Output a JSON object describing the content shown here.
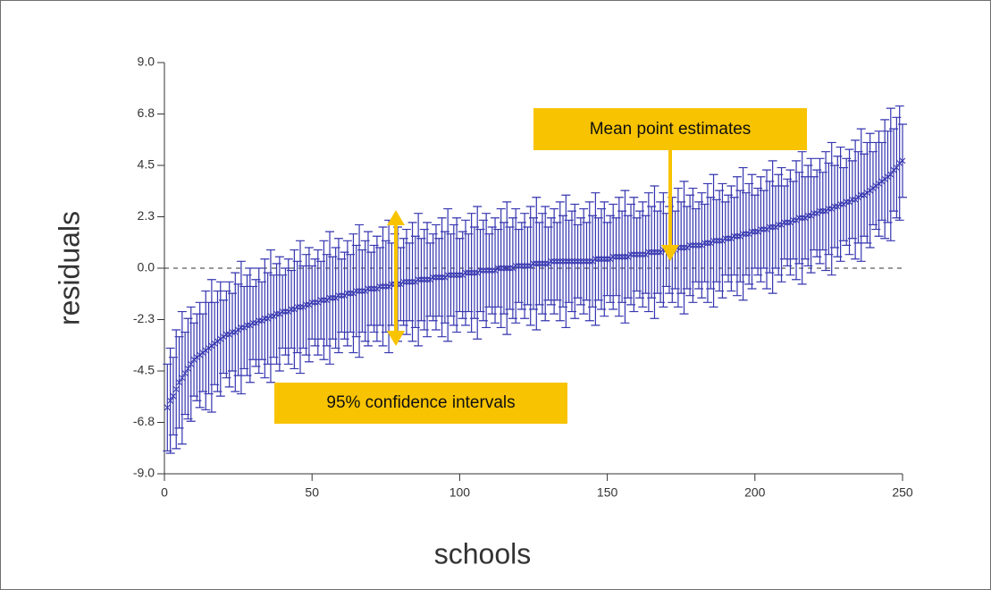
{
  "chart_data": {
    "type": "errorbar",
    "x_label": "schools",
    "y_label": "residuals",
    "annotations": [
      "Mean point estimates",
      "95% confidence intervals"
    ],
    "xlim": [
      0,
      250
    ],
    "xticks": [
      0,
      50,
      100,
      150,
      200,
      250
    ],
    "ylim": [
      -9,
      9
    ],
    "yticks": [
      {
        "value": -9,
        "label": "-9.0"
      },
      {
        "value": -6.75,
        "label": "-6.8"
      },
      {
        "value": -4.5,
        "label": "-4.5"
      },
      {
        "value": -2.25,
        "label": "-2.3"
      },
      {
        "value": 0,
        "label": "0.0"
      },
      {
        "value": 2.25,
        "label": "2.3"
      },
      {
        "value": 4.5,
        "label": "4.5"
      },
      {
        "value": 6.75,
        "label": "6.8"
      },
      {
        "value": 9,
        "label": "9.0"
      }
    ],
    "reference_line": 0,
    "series": [
      {
        "color": "#3535b0",
        "x": [
          1,
          2,
          3,
          4,
          5,
          6,
          7,
          8,
          9,
          10,
          11,
          12,
          13,
          14,
          15,
          16,
          17,
          18,
          19,
          20,
          21,
          22,
          23,
          24,
          25,
          26,
          27,
          28,
          29,
          30,
          31,
          32,
          33,
          34,
          35,
          36,
          37,
          38,
          39,
          40,
          41,
          42,
          43,
          44,
          45,
          46,
          47,
          48,
          49,
          50,
          51,
          52,
          53,
          54,
          55,
          56,
          57,
          58,
          59,
          60,
          61,
          62,
          63,
          64,
          65,
          66,
          67,
          68,
          69,
          70,
          71,
          72,
          73,
          74,
          75,
          76,
          77,
          78,
          79,
          80,
          81,
          82,
          83,
          84,
          85,
          86,
          87,
          88,
          89,
          90,
          91,
          92,
          93,
          94,
          95,
          96,
          97,
          98,
          99,
          100,
          101,
          102,
          103,
          104,
          105,
          106,
          107,
          108,
          109,
          110,
          111,
          112,
          113,
          114,
          115,
          116,
          117,
          118,
          119,
          120,
          121,
          122,
          123,
          124,
          125,
          126,
          127,
          128,
          129,
          130,
          131,
          132,
          133,
          134,
          135,
          136,
          137,
          138,
          139,
          140,
          141,
          142,
          143,
          144,
          145,
          146,
          147,
          148,
          149,
          150,
          151,
          152,
          153,
          154,
          155,
          156,
          157,
          158,
          159,
          160,
          161,
          162,
          163,
          164,
          165,
          166,
          167,
          168,
          169,
          170,
          171,
          172,
          173,
          174,
          175,
          176,
          177,
          178,
          179,
          180,
          181,
          182,
          183,
          184,
          185,
          186,
          187,
          188,
          189,
          190,
          191,
          192,
          193,
          194,
          195,
          196,
          197,
          198,
          199,
          200,
          201,
          202,
          203,
          204,
          205,
          206,
          207,
          208,
          209,
          210,
          211,
          212,
          213,
          214,
          215,
          216,
          217,
          218,
          219,
          220,
          221,
          222,
          223,
          224,
          225,
          226,
          227,
          228,
          229,
          230,
          231,
          232,
          233,
          234,
          235,
          236,
          237,
          238,
          239,
          240,
          241,
          242,
          243,
          244,
          245,
          246,
          247,
          248,
          249,
          250
        ],
        "values": [
          -6.1,
          -5.8,
          -5.6,
          -5.3,
          -5.0,
          -4.8,
          -4.6,
          -4.4,
          -4.2,
          -4.0,
          -3.9,
          -3.8,
          -3.7,
          -3.6,
          -3.5,
          -3.4,
          -3.3,
          -3.2,
          -3.1,
          -3.0,
          -2.9,
          -2.9,
          -2.8,
          -2.8,
          -2.7,
          -2.6,
          -2.6,
          -2.5,
          -2.5,
          -2.4,
          -2.4,
          -2.3,
          -2.3,
          -2.2,
          -2.2,
          -2.1,
          -2.1,
          -2.0,
          -2.0,
          -1.9,
          -1.9,
          -1.9,
          -1.8,
          -1.8,
          -1.7,
          -1.7,
          -1.7,
          -1.6,
          -1.6,
          -1.5,
          -1.5,
          -1.5,
          -1.4,
          -1.4,
          -1.4,
          -1.3,
          -1.3,
          -1.3,
          -1.2,
          -1.2,
          -1.2,
          -1.1,
          -1.1,
          -1.1,
          -1.0,
          -1.0,
          -1.0,
          -1.0,
          -0.9,
          -0.9,
          -0.9,
          -0.9,
          -0.8,
          -0.8,
          -0.8,
          -0.8,
          -0.7,
          -0.7,
          -0.7,
          -0.7,
          -0.6,
          -0.6,
          -0.6,
          -0.6,
          -0.6,
          -0.5,
          -0.5,
          -0.5,
          -0.5,
          -0.5,
          -0.4,
          -0.4,
          -0.4,
          -0.4,
          -0.4,
          -0.3,
          -0.3,
          -0.3,
          -0.3,
          -0.3,
          -0.3,
          -0.2,
          -0.2,
          -0.2,
          -0.2,
          -0.2,
          -0.1,
          -0.1,
          -0.1,
          -0.1,
          -0.1,
          -0.1,
          0.0,
          0.0,
          0.0,
          0.0,
          0.0,
          0.0,
          0.1,
          0.1,
          0.1,
          0.1,
          0.1,
          0.1,
          0.2,
          0.2,
          0.2,
          0.2,
          0.2,
          0.2,
          0.3,
          0.3,
          0.3,
          0.3,
          0.3,
          0.3,
          0.3,
          0.3,
          0.3,
          0.3,
          0.3,
          0.3,
          0.3,
          0.3,
          0.3,
          0.4,
          0.4,
          0.4,
          0.4,
          0.4,
          0.4,
          0.5,
          0.5,
          0.5,
          0.5,
          0.5,
          0.5,
          0.6,
          0.6,
          0.6,
          0.6,
          0.6,
          0.6,
          0.7,
          0.7,
          0.7,
          0.7,
          0.7,
          0.8,
          0.8,
          0.8,
          0.8,
          0.8,
          0.9,
          0.9,
          0.9,
          0.9,
          1.0,
          1.0,
          1.0,
          1.0,
          1.0,
          1.1,
          1.1,
          1.1,
          1.2,
          1.2,
          1.2,
          1.2,
          1.3,
          1.3,
          1.3,
          1.4,
          1.4,
          1.4,
          1.5,
          1.5,
          1.5,
          1.6,
          1.6,
          1.6,
          1.7,
          1.7,
          1.7,
          1.8,
          1.8,
          1.8,
          1.9,
          1.9,
          2.0,
          2.0,
          2.0,
          2.1,
          2.1,
          2.2,
          2.2,
          2.2,
          2.3,
          2.3,
          2.4,
          2.4,
          2.5,
          2.5,
          2.5,
          2.6,
          2.6,
          2.7,
          2.7,
          2.8,
          2.8,
          2.9,
          2.9,
          3.0,
          3.0,
          3.1,
          3.2,
          3.2,
          3.3,
          3.4,
          3.5,
          3.6,
          3.7,
          3.8,
          3.9,
          4.0,
          4.1,
          4.3,
          4.4,
          4.6,
          4.7
        ],
        "errors": [
          1.9,
          2.3,
          1.7,
          2.6,
          2.0,
          2.9,
          1.8,
          2.2,
          2.5,
          1.6,
          1.9,
          2.3,
          1.7,
          2.6,
          2.0,
          2.9,
          1.8,
          2.2,
          2.5,
          1.6,
          1.9,
          2.3,
          1.7,
          2.6,
          2.0,
          2.9,
          1.8,
          2.2,
          2.5,
          1.6,
          1.9,
          2.3,
          1.7,
          2.6,
          2.0,
          2.9,
          1.8,
          2.2,
          2.5,
          1.6,
          1.9,
          2.3,
          1.7,
          2.6,
          2.0,
          2.9,
          1.8,
          2.2,
          2.5,
          1.6,
          1.9,
          2.3,
          1.7,
          2.6,
          2.0,
          2.9,
          1.8,
          2.2,
          2.5,
          1.6,
          1.9,
          2.3,
          1.7,
          2.6,
          2.0,
          2.9,
          1.8,
          2.2,
          2.5,
          1.6,
          1.9,
          2.3,
          1.7,
          2.6,
          2.0,
          2.9,
          1.8,
          2.2,
          2.5,
          1.6,
          1.9,
          2.3,
          1.7,
          2.6,
          2.0,
          2.9,
          1.8,
          2.2,
          2.5,
          1.6,
          1.9,
          2.3,
          1.7,
          2.6,
          2.0,
          2.9,
          1.8,
          2.2,
          2.5,
          1.6,
          1.9,
          2.3,
          1.7,
          2.6,
          2.0,
          2.9,
          1.8,
          2.2,
          2.5,
          1.6,
          1.9,
          2.3,
          1.7,
          2.6,
          2.0,
          2.9,
          1.8,
          2.2,
          2.5,
          1.6,
          1.9,
          2.3,
          1.7,
          2.6,
          2.0,
          2.9,
          1.8,
          2.2,
          2.5,
          1.6,
          1.9,
          2.3,
          1.7,
          2.6,
          2.0,
          2.9,
          1.8,
          2.2,
          2.5,
          1.6,
          1.9,
          2.3,
          1.7,
          2.6,
          2.0,
          2.9,
          1.8,
          2.2,
          2.5,
          1.6,
          1.9,
          2.3,
          1.7,
          2.6,
          2.0,
          2.9,
          1.8,
          2.2,
          2.5,
          1.6,
          1.9,
          2.3,
          1.7,
          2.6,
          2.0,
          2.9,
          1.8,
          2.2,
          2.5,
          1.6,
          1.9,
          2.3,
          1.7,
          2.6,
          2.0,
          2.9,
          1.8,
          2.2,
          2.5,
          1.6,
          1.9,
          2.3,
          1.7,
          2.6,
          2.0,
          2.9,
          1.8,
          2.2,
          2.5,
          1.6,
          1.9,
          2.3,
          1.7,
          2.6,
          2.0,
          2.9,
          1.8,
          2.2,
          2.5,
          1.6,
          1.9,
          2.3,
          1.7,
          2.6,
          2.0,
          2.9,
          1.8,
          2.2,
          2.5,
          1.6,
          1.9,
          2.3,
          1.7,
          2.6,
          2.0,
          2.9,
          1.8,
          2.2,
          2.5,
          1.6,
          1.9,
          2.3,
          1.7,
          2.6,
          2.0,
          2.9,
          1.8,
          2.2,
          2.5,
          1.6,
          1.9,
          2.3,
          1.7,
          2.6,
          2.0,
          2.9,
          1.8,
          2.2,
          2.5,
          1.6,
          1.9,
          2.3,
          1.7,
          2.6,
          2.0,
          2.9,
          1.8,
          2.2,
          2.5,
          1.6
        ]
      }
    ]
  }
}
